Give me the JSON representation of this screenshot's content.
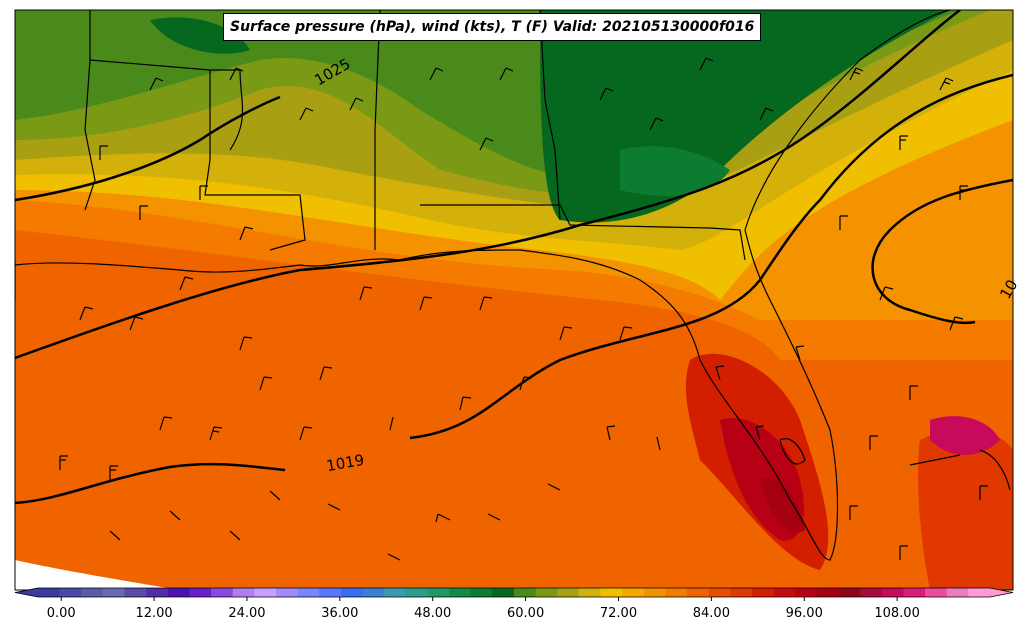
{
  "title": "Surface pressure (hPa), wind (kts), T (F) Valid: 202105130000f016",
  "isobar_labels": [
    "1025",
    "1019",
    "10"
  ],
  "colorbar": {
    "ticks": [
      "0.00",
      "12.00",
      "24.00",
      "36.00",
      "48.00",
      "60.00",
      "72.00",
      "84.00",
      "96.00",
      "108.00"
    ],
    "colors": [
      "#3b3b9e",
      "#4848a8",
      "#5a5aa8",
      "#6a68b0",
      "#5b4aa8",
      "#4f2fa8",
      "#4a12b0",
      "#6a1ec8",
      "#8a4ae0",
      "#b07ef0",
      "#c8a0ff",
      "#a08cff",
      "#7a86ff",
      "#5a78ff",
      "#3a6ef0",
      "#3a80d0",
      "#3a9ab0",
      "#2aa08a",
      "#1e9a68",
      "#158a48",
      "#0c7c30",
      "#06681e",
      "#4a8a1a",
      "#7a9a16",
      "#a8a012",
      "#d4b00a",
      "#f0c000",
      "#f5a800",
      "#f59200",
      "#f57a00",
      "#f06400",
      "#e84e00",
      "#e03800",
      "#d41e00",
      "#c80a0a",
      "#b80014",
      "#a40010",
      "#8c0818",
      "#a8083a",
      "#c80a5a",
      "#e01a7a",
      "#ee4aa0",
      "#f07ac0",
      "#ff9ad6"
    ]
  }
}
